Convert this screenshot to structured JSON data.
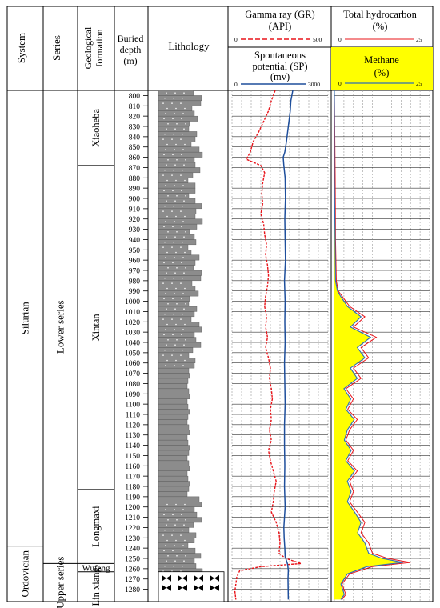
{
  "headers": {
    "system": "System",
    "series": "Series",
    "formation_line1": "Geological",
    "formation_line2": "formation",
    "depth_line1": "Buried",
    "depth_line2": "depth",
    "depth_line3": "(m)",
    "lithology": "Lithology",
    "gr_title": "Gamma ray (GR)",
    "gr_unit": "(API)",
    "gr_min": "0",
    "gr_max": "500",
    "sp_title1": "Spontaneous",
    "sp_title2": "potential (SP)",
    "sp_unit": "(mv)",
    "sp_min": "0",
    "sp_max": "3000",
    "th_title": "Total hydrocarbon",
    "th_unit": "(%)",
    "th_min": "0",
    "th_max": "25",
    "methane_title": "Methane",
    "methane_unit": "(%)",
    "methane_min": "0",
    "methane_max": "25"
  },
  "stratigraphy": {
    "systems": [
      {
        "name": "Silurian",
        "top": 795,
        "bottom": 1238
      },
      {
        "name": "Ordovician",
        "top": 1238,
        "bottom": 1292
      }
    ],
    "series": [
      {
        "name": "Lower series",
        "top": 795,
        "bottom": 1255
      },
      {
        "name": "Upper series",
        "top": 1255,
        "bottom": 1292
      }
    ],
    "formations": [
      {
        "name": "Xiaoheba",
        "top": 795,
        "bottom": 868
      },
      {
        "name": "Xintan",
        "top": 868,
        "bottom": 1183
      },
      {
        "name": "Longmaxi",
        "top": 1183,
        "bottom": 1255
      },
      {
        "name": "Wufeng",
        "top": 1255,
        "bottom": 1263
      },
      {
        "name": "Lin xiang",
        "top": 1263,
        "bottom": 1292
      }
    ]
  },
  "colors": {
    "gr": "#e8141a",
    "sp": "#1f4f9c",
    "total_hydrocarbon": "#e8141a",
    "methane_line": "#2e6fb5",
    "methane_fill": "#ffff00",
    "lithology_fill": "#8c8c8c",
    "grid": "#9a9a9a"
  },
  "chart_data": {
    "type": "line",
    "orientation": "depth-down",
    "depth_range": [
      795,
      1292
    ],
    "depth_ticks": [
      800,
      810,
      820,
      830,
      840,
      850,
      860,
      870,
      880,
      890,
      900,
      910,
      920,
      930,
      940,
      950,
      960,
      970,
      980,
      990,
      1000,
      1010,
      1020,
      1030,
      1040,
      1050,
      1060,
      1070,
      1080,
      1090,
      1100,
      1110,
      1120,
      1130,
      1140,
      1150,
      1160,
      1170,
      1180,
      1190,
      1200,
      1210,
      1220,
      1230,
      1240,
      1250,
      1260,
      1270,
      1280
    ],
    "tracks": [
      {
        "name": "Gamma ray (GR)",
        "unit": "API",
        "range": [
          0,
          500
        ],
        "style": "dashed",
        "points": [
          [
            795,
            225
          ],
          [
            805,
            205
          ],
          [
            815,
            190
          ],
          [
            825,
            165
          ],
          [
            835,
            140
          ],
          [
            845,
            110
          ],
          [
            855,
            95
          ],
          [
            862,
            75
          ],
          [
            868,
            150
          ],
          [
            875,
            170
          ],
          [
            885,
            160
          ],
          [
            895,
            155
          ],
          [
            905,
            160
          ],
          [
            915,
            150
          ],
          [
            925,
            165
          ],
          [
            935,
            170
          ],
          [
            945,
            180
          ],
          [
            955,
            175
          ],
          [
            965,
            185
          ],
          [
            975,
            190
          ],
          [
            985,
            185
          ],
          [
            995,
            175
          ],
          [
            1005,
            170
          ],
          [
            1015,
            180
          ],
          [
            1025,
            175
          ],
          [
            1035,
            185
          ],
          [
            1045,
            175
          ],
          [
            1055,
            190
          ],
          [
            1065,
            200
          ],
          [
            1075,
            195
          ],
          [
            1085,
            205
          ],
          [
            1095,
            210
          ],
          [
            1105,
            200
          ],
          [
            1115,
            205
          ],
          [
            1125,
            195
          ],
          [
            1135,
            205
          ],
          [
            1145,
            190
          ],
          [
            1155,
            200
          ],
          [
            1165,
            215
          ],
          [
            1175,
            230
          ],
          [
            1185,
            220
          ],
          [
            1195,
            215
          ],
          [
            1205,
            205
          ],
          [
            1215,
            230
          ],
          [
            1225,
            245
          ],
          [
            1235,
            250
          ],
          [
            1245,
            245
          ],
          [
            1250,
            280
          ],
          [
            1255,
            360
          ],
          [
            1258,
            150
          ],
          [
            1262,
            40
          ],
          [
            1268,
            25
          ],
          [
            1275,
            20
          ],
          [
            1282,
            15
          ],
          [
            1290,
            20
          ]
        ]
      },
      {
        "name": "Spontaneous potential (SP)",
        "unit": "mv",
        "range": [
          0,
          3000
        ],
        "style": "solid",
        "points": [
          [
            795,
            1900
          ],
          [
            805,
            1840
          ],
          [
            815,
            1820
          ],
          [
            825,
            1780
          ],
          [
            835,
            1740
          ],
          [
            845,
            1700
          ],
          [
            855,
            1650
          ],
          [
            860,
            1600
          ],
          [
            868,
            1620
          ],
          [
            880,
            1660
          ],
          [
            900,
            1670
          ],
          [
            920,
            1650
          ],
          [
            940,
            1660
          ],
          [
            960,
            1670
          ],
          [
            980,
            1640
          ],
          [
            1000,
            1660
          ],
          [
            1020,
            1650
          ],
          [
            1040,
            1660
          ],
          [
            1060,
            1640
          ],
          [
            1080,
            1650
          ],
          [
            1100,
            1660
          ],
          [
            1120,
            1640
          ],
          [
            1140,
            1640
          ],
          [
            1160,
            1650
          ],
          [
            1180,
            1640
          ],
          [
            1190,
            1650
          ],
          [
            1200,
            1660
          ],
          [
            1210,
            1640
          ],
          [
            1220,
            1620
          ],
          [
            1230,
            1630
          ],
          [
            1240,
            1650
          ],
          [
            1248,
            1660
          ],
          [
            1252,
            1700
          ],
          [
            1256,
            1740
          ],
          [
            1262,
            1760
          ],
          [
            1270,
            1750
          ],
          [
            1280,
            1755
          ],
          [
            1290,
            1760
          ]
        ]
      },
      {
        "name": "Total hydrocarbon",
        "unit": "%",
        "range": [
          0,
          25
        ],
        "style": "solid",
        "points": [
          [
            795,
            0
          ],
          [
            880,
            0.2
          ],
          [
            940,
            0.3
          ],
          [
            980,
            0.5
          ],
          [
            990,
            1
          ],
          [
            995,
            2
          ],
          [
            1005,
            4
          ],
          [
            1015,
            8
          ],
          [
            1025,
            5
          ],
          [
            1035,
            11
          ],
          [
            1045,
            7
          ],
          [
            1055,
            9
          ],
          [
            1065,
            5
          ],
          [
            1075,
            7
          ],
          [
            1085,
            3
          ],
          [
            1095,
            5
          ],
          [
            1105,
            3.5
          ],
          [
            1115,
            6
          ],
          [
            1125,
            4
          ],
          [
            1135,
            3
          ],
          [
            1145,
            5
          ],
          [
            1155,
            3.5
          ],
          [
            1165,
            6
          ],
          [
            1175,
            4
          ],
          [
            1185,
            5
          ],
          [
            1195,
            4
          ],
          [
            1205,
            6
          ],
          [
            1215,
            8
          ],
          [
            1225,
            7
          ],
          [
            1235,
            9
          ],
          [
            1245,
            10
          ],
          [
            1250,
            14
          ],
          [
            1254,
            20
          ],
          [
            1258,
            10
          ],
          [
            1265,
            4
          ],
          [
            1275,
            2
          ],
          [
            1285,
            3
          ],
          [
            1290,
            2
          ]
        ]
      },
      {
        "name": "Methane",
        "unit": "%",
        "range": [
          0,
          25
        ],
        "style": "filled",
        "points": [
          [
            795,
            0
          ],
          [
            880,
            0
          ],
          [
            980,
            0.3
          ],
          [
            990,
            0.8
          ],
          [
            995,
            1.6
          ],
          [
            1005,
            3.4
          ],
          [
            1015,
            7
          ],
          [
            1025,
            4.2
          ],
          [
            1035,
            9.5
          ],
          [
            1045,
            6
          ],
          [
            1055,
            8
          ],
          [
            1065,
            4.2
          ],
          [
            1075,
            6
          ],
          [
            1085,
            2.5
          ],
          [
            1095,
            4.3
          ],
          [
            1105,
            3
          ],
          [
            1115,
            5.2
          ],
          [
            1125,
            3.4
          ],
          [
            1135,
            2.6
          ],
          [
            1145,
            4.4
          ],
          [
            1155,
            3
          ],
          [
            1165,
            5.3
          ],
          [
            1175,
            3.4
          ],
          [
            1185,
            4.4
          ],
          [
            1195,
            3.4
          ],
          [
            1205,
            5.3
          ],
          [
            1215,
            7
          ],
          [
            1225,
            6.1
          ],
          [
            1235,
            8
          ],
          [
            1245,
            9
          ],
          [
            1250,
            12.5
          ],
          [
            1254,
            18
          ],
          [
            1258,
            8.5
          ],
          [
            1265,
            3.4
          ],
          [
            1275,
            1.7
          ],
          [
            1285,
            2.6
          ],
          [
            1290,
            1.7
          ]
        ]
      }
    ]
  }
}
